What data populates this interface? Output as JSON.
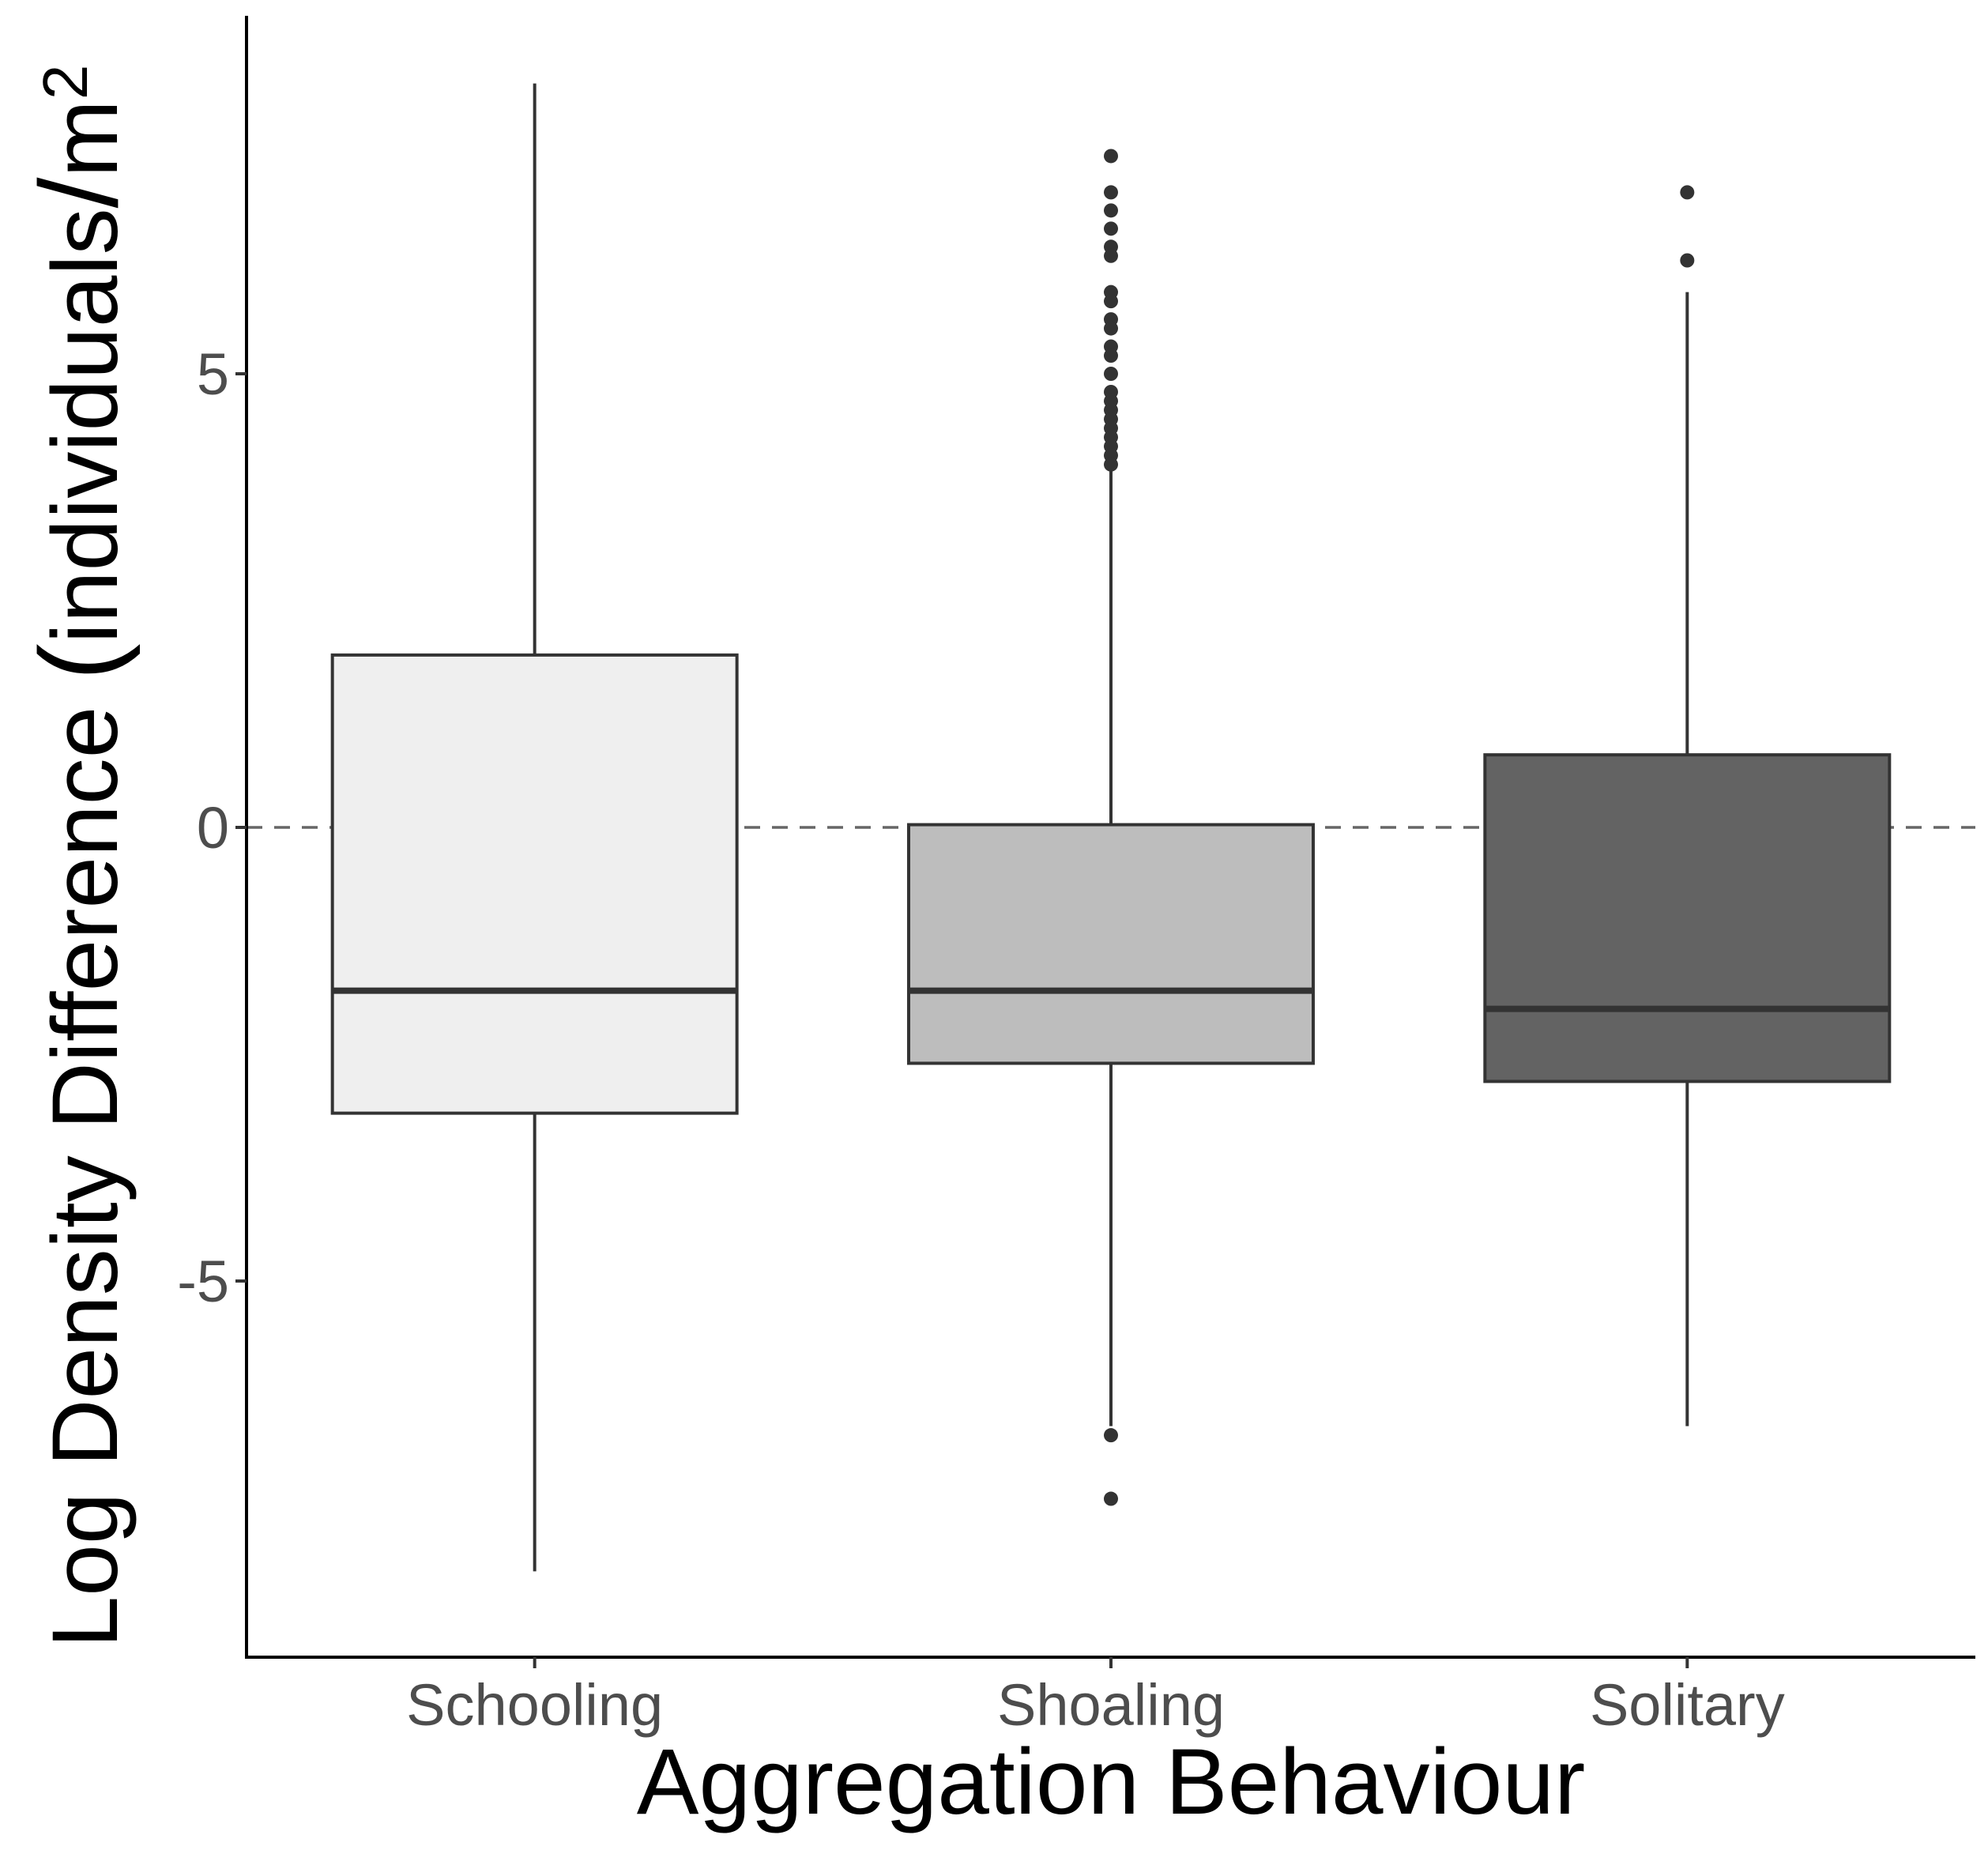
{
  "chart_data": {
    "type": "boxplot",
    "title": "",
    "xlabel": "Aggregation Behaviour",
    "ylabel": "Log Density Difference (individuals/m²)",
    "ylabel_parts": {
      "main": "Log Density Difference ",
      "open": "(",
      "unit": "individuals",
      "slash": "/",
      "m": "m",
      "sup": "2"
    },
    "ylim": [
      -9,
      9
    ],
    "yticks": [
      -5,
      0,
      5
    ],
    "ytick_labels": [
      "-5",
      "0",
      "5"
    ],
    "reference_line": {
      "y": 0,
      "style": "dashed"
    },
    "grid": false,
    "categories": [
      "Schooling",
      "Shoaling",
      "Solitary"
    ],
    "boxes": [
      {
        "category": "Schooling",
        "whisker_low": -8.2,
        "q1": -3.15,
        "median": -1.8,
        "q3": 1.9,
        "whisker_high": 8.2,
        "outliers": [],
        "fill": "#efefef"
      },
      {
        "category": "Shoaling",
        "whisker_low": -6.6,
        "q1": -2.6,
        "median": -1.8,
        "q3": 0.03,
        "whisker_high": 4.0,
        "outliers": [
          7.4,
          7.0,
          6.8,
          6.6,
          6.4,
          6.3,
          5.9,
          5.8,
          5.6,
          5.5,
          5.3,
          5.2,
          5.0,
          4.8,
          4.7,
          4.6,
          4.5,
          4.4,
          4.3,
          4.2,
          4.1,
          4.0,
          -6.7,
          -7.4
        ],
        "fill": "#bdbdbd"
      },
      {
        "category": "Solitary",
        "whisker_low": -6.6,
        "q1": -2.8,
        "median": -2.0,
        "q3": 0.8,
        "whisker_high": 5.9,
        "outliers": [
          7.0,
          6.25
        ],
        "fill": "#636363"
      }
    ],
    "colors": {
      "box_outline": "#333333",
      "axis": "#000000",
      "reference_line": "#666666",
      "tick_label": "#4d4d4d"
    }
  }
}
